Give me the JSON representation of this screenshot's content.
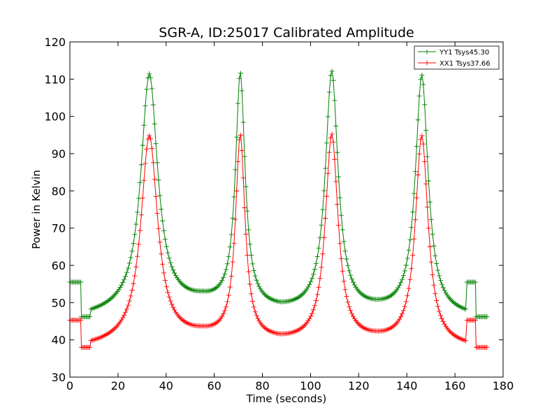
{
  "chart_data": {
    "type": "line",
    "title": "SGR-A, ID:25017 Calibrated Amplitude",
    "xlabel": "Time (seconds)",
    "ylabel": "Power in Kelvin",
    "xlim": [
      0,
      180
    ],
    "ylim": [
      30,
      120
    ],
    "xticks": [
      0,
      20,
      40,
      60,
      80,
      100,
      120,
      140,
      160,
      180
    ],
    "yticks": [
      30,
      40,
      50,
      60,
      70,
      80,
      90,
      100,
      110,
      120
    ],
    "grid": false,
    "legend_position": "top-right",
    "marker": "+",
    "peak_times": [
      33,
      70.8,
      108.8,
      146.2
    ],
    "series": [
      {
        "name": "YY1 Tsys45.30",
        "color": "#008000",
        "step_segments": [
          {
            "x": [
              0,
              4.5
            ],
            "y": 55.5
          },
          {
            "x": [
              4.8,
              8.5
            ],
            "y": 46.2
          },
          {
            "x": [
              165,
              168.5
            ],
            "y": 55.5
          },
          {
            "x": [
              168.8,
              173.5
            ],
            "y": 46.2
          }
        ],
        "peaks": [
          111,
          110.5,
          111.3,
          110.5
        ],
        "valleys": [
          [
            8.5,
            46.2
          ],
          [
            55,
            49.2
          ],
          [
            87,
            47.0
          ],
          [
            128,
            47.0
          ],
          [
            165,
            46.0
          ]
        ]
      },
      {
        "name": "XX1 Tsys37.66",
        "color": "#ff0000",
        "step_segments": [
          {
            "x": [
              0,
              4.5
            ],
            "y": 45.3
          },
          {
            "x": [
              4.8,
              8.5
            ],
            "y": 38.0
          },
          {
            "x": [
              165,
              168.5
            ],
            "y": 45.3
          },
          {
            "x": [
              168.8,
              173.5
            ],
            "y": 38.0
          }
        ],
        "peaks": [
          94.5,
          94.0,
          94.5,
          94.3
        ],
        "valleys": [
          [
            8.5,
            38.0
          ],
          [
            55,
            40.3
          ],
          [
            87,
            38.8
          ],
          [
            128,
            39.0
          ],
          [
            165,
            37.8
          ]
        ]
      }
    ]
  }
}
